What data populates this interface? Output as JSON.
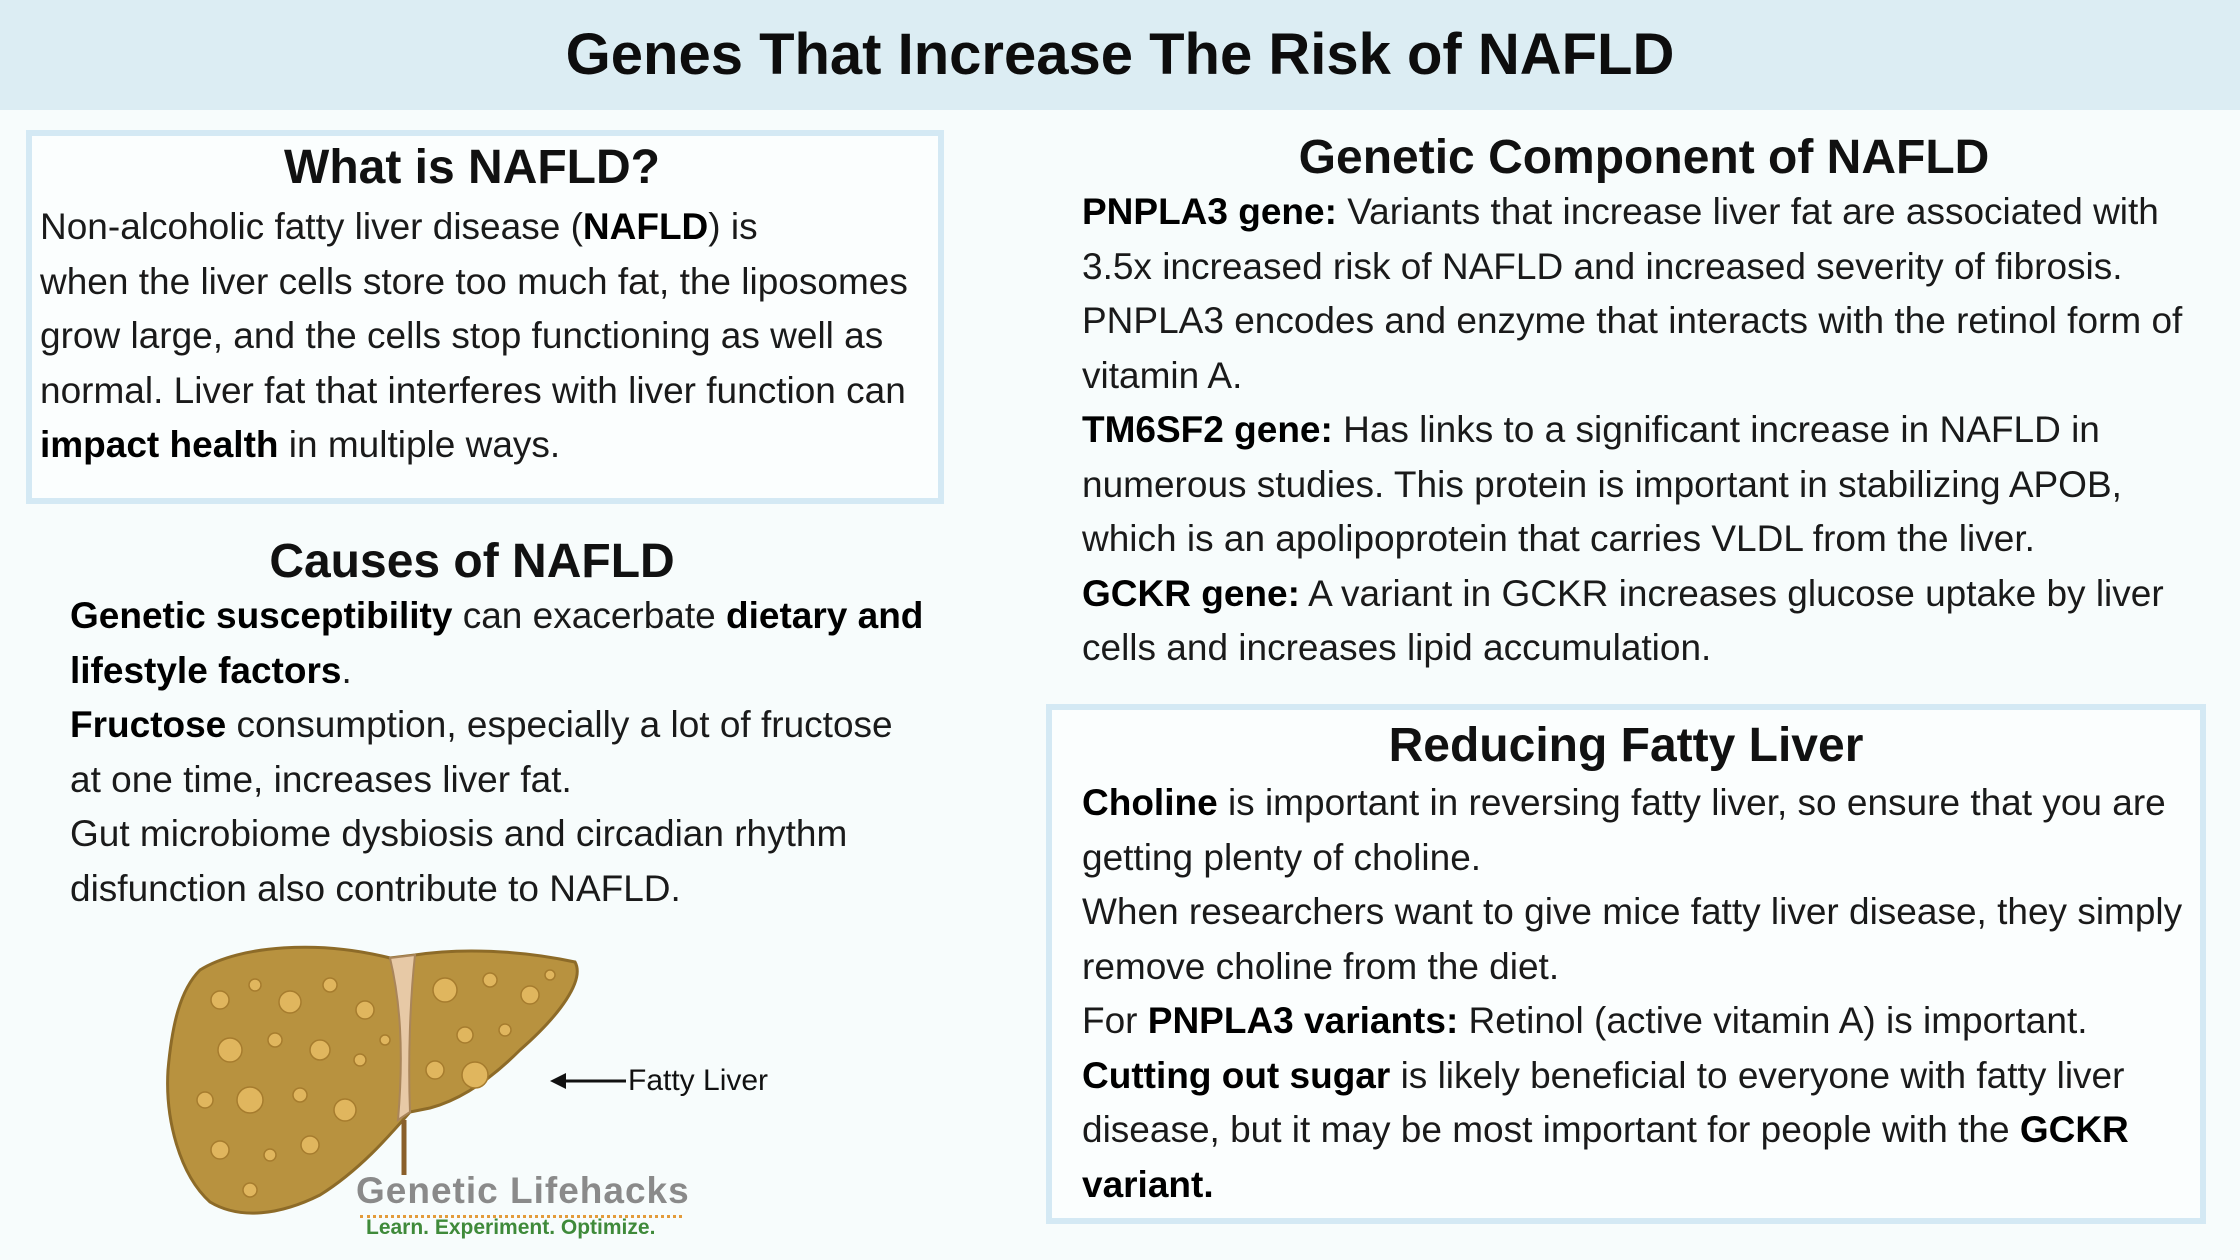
{
  "title": "Genes That Increase The Risk of NAFLD",
  "what": {
    "title": "What is NAFLD?",
    "line1_a": "Non-alcoholic fatty liver disease (",
    "line1_b": "NAFLD",
    "line1_c": ") is",
    "line2": "when the liver cells store too much fat, the liposomes grow large, and the cells stop functioning as well as normal. Liver fat that interferes with liver function can ",
    "line2_b": "impact health",
    "line2_c": " in multiple ways."
  },
  "causes": {
    "title": "Causes of NAFLD",
    "p1_b1": "Genetic susceptibility",
    "p1_t1": " can exacerbate ",
    "p1_b2": "dietary and lifestyle factors",
    "p1_t2": ".",
    "p2_b": "Fructose",
    "p2_t": " consumption, especially a lot of fructose at one time, increases liver fat.",
    "p3": "Gut microbiome dysbiosis and circadian rhythm disfunction also contribute to NAFLD."
  },
  "genetic": {
    "title": "Genetic Component of NAFLD",
    "g1_b": "PNPLA3 gene:",
    "g1_t": " Variants that increase liver fat are associated with 3.5x increased risk of NAFLD and increased severity of fibrosis. PNPLA3 encodes and enzyme that interacts with the retinol form of vitamin A.",
    "g2_b": "TM6SF2 gene:",
    "g2_t": " Has links to a significant increase in NAFLD in numerous studies. This protein is important in stabilizing APOB, which is an apolipoprotein that carries VLDL from the liver.",
    "g3_b": "GCKR gene:",
    "g3_t": " A variant in GCKR increases glucose uptake by liver cells and increases lipid accumulation."
  },
  "reducing": {
    "title": "Reducing Fatty Liver",
    "r1_b": "Choline",
    "r1_t": " is important in reversing fatty liver, so ensure that you are getting plenty of choline.",
    "r2": "When researchers want to give mice fatty liver disease, they simply remove choline from the diet.",
    "r3_t1": "For ",
    "r3_b": "PNPLA3 variants:",
    "r3_t2": " Retinol (active vitamin A) is important.",
    "r4_b": "Cutting out sugar",
    "r4_t": " is likely beneficial to everyone with fatty liver disease, but it may be most important for people with the ",
    "r4_b2": "GCKR variant."
  },
  "image": {
    "label": "Fatty Liver",
    "icon": "fatty-liver-illustration"
  },
  "brand": {
    "name": "Genetic Lifehacks",
    "tagline": "Learn. Experiment. Optimize."
  },
  "colors": {
    "banner": "#dcedf3",
    "box_border": "#d4e9f4",
    "liver": "#b8923f",
    "tagline": "#3f8a3a"
  }
}
